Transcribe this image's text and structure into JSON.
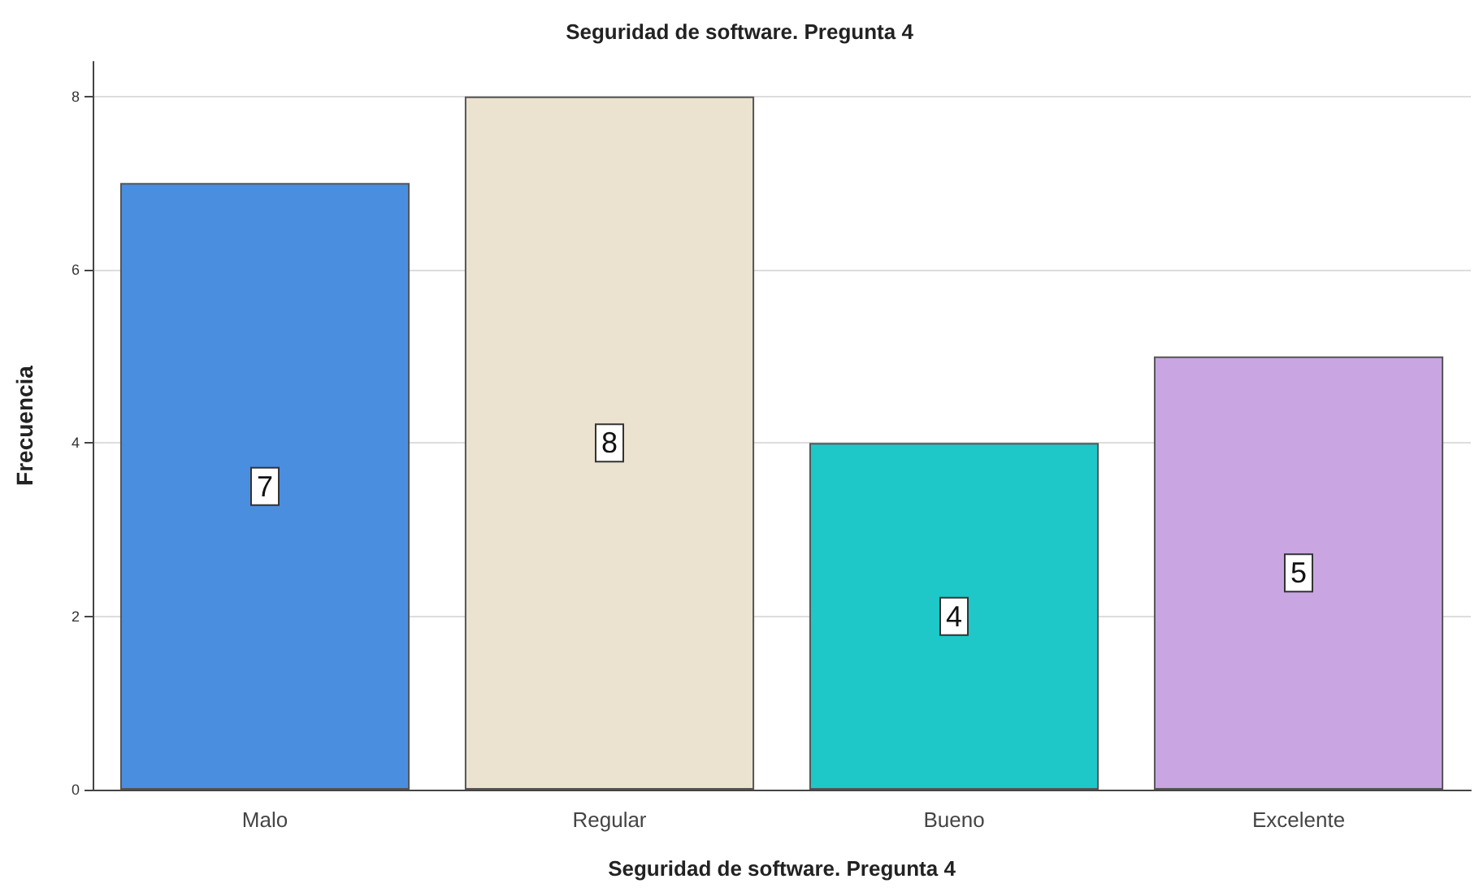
{
  "chart_data": {
    "type": "bar",
    "title": "Seguridad de software. Pregunta 4",
    "xlabel": "Seguridad de software. Pregunta 4",
    "ylabel": "Frecuencia",
    "categories": [
      "Malo",
      "Regular",
      "Bueno",
      "Excelente"
    ],
    "values": [
      7,
      8,
      4,
      5
    ],
    "colors": [
      "#4a8ee0",
      "#ebe3d0",
      "#1fc8c8",
      "#c9a6e2"
    ],
    "ylim": [
      0,
      8.4
    ],
    "yticks": [
      0,
      2,
      4,
      6,
      8
    ],
    "grid": "y",
    "data_labels": true
  }
}
